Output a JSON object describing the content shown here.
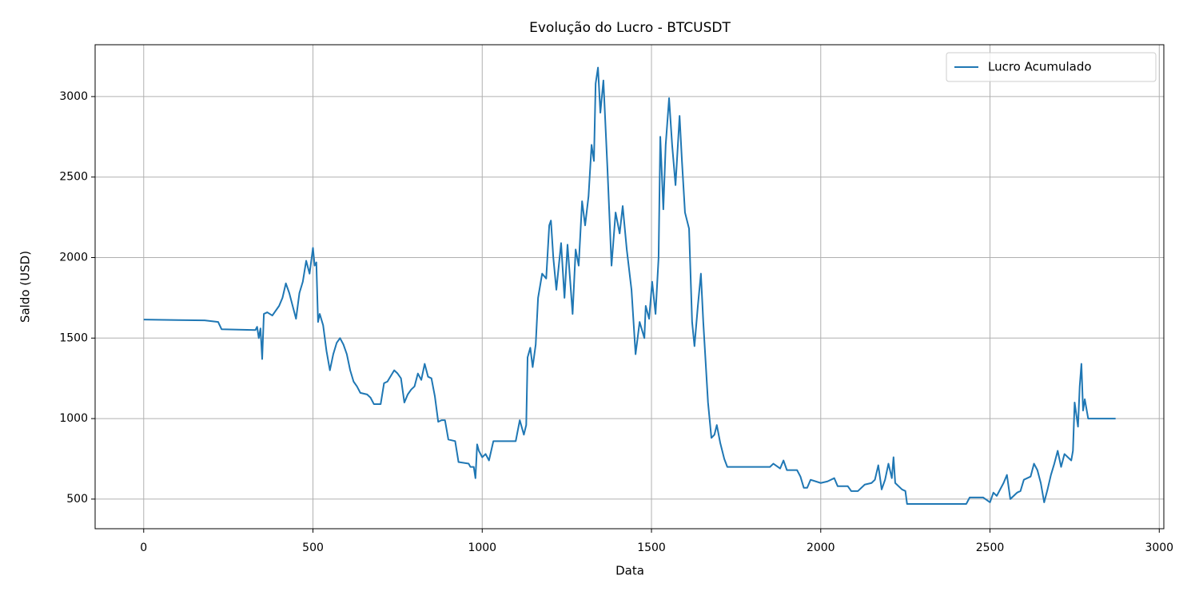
{
  "chart_data": {
    "type": "line",
    "title": "Evolução do Lucro - BTCUSDT",
    "x_label": "Data",
    "y_label": "Saldo (USD)",
    "series": [
      {
        "name": "Lucro Acumulado",
        "color": "#1f77b4",
        "x": [
          0,
          100,
          180,
          220,
          230,
          330,
          335,
          340,
          345,
          350,
          355,
          365,
          380,
          400,
          410,
          420,
          430,
          440,
          450,
          460,
          470,
          480,
          490,
          500,
          505,
          510,
          515,
          520,
          530,
          540,
          550,
          560,
          570,
          580,
          590,
          600,
          610,
          620,
          630,
          640,
          660,
          670,
          680,
          700,
          710,
          720,
          740,
          750,
          760,
          770,
          780,
          790,
          800,
          810,
          820,
          830,
          840,
          850,
          860,
          870,
          880,
          890,
          900,
          920,
          930,
          960,
          965,
          975,
          980,
          985,
          990,
          1000,
          1010,
          1020,
          1033,
          1099,
          1111,
          1123,
          1130,
          1134,
          1142,
          1149,
          1158,
          1165,
          1177,
          1189,
          1198,
          1203,
          1210,
          1219,
          1233,
          1243,
          1252,
          1267,
          1276,
          1285,
          1295,
          1304,
          1314,
          1323,
          1330,
          1335,
          1342,
          1349,
          1358,
          1370,
          1382,
          1394,
          1406,
          1415,
          1427,
          1441,
          1453,
          1465,
          1479,
          1483,
          1493,
          1502,
          1512,
          1521,
          1526,
          1535,
          1542,
          1552,
          1561,
          1571,
          1583,
          1590,
          1599,
          1611,
          1620,
          1627,
          1637,
          1646,
          1653,
          1660,
          1667,
          1677,
          1686,
          1693,
          1703,
          1715,
          1724,
          1850,
          1860,
          1880,
          1890,
          1900,
          1930,
          1940,
          1950,
          1960,
          1970,
          2000,
          2020,
          2040,
          2050,
          2080,
          2090,
          2110,
          2130,
          2150,
          2160,
          2170,
          2180,
          2190,
          2200,
          2210,
          2215,
          2220,
          2240,
          2250,
          2255,
          2420,
          2430,
          2440,
          2480,
          2500,
          2510,
          2520,
          2540,
          2550,
          2560,
          2580,
          2590,
          2600,
          2620,
          2630,
          2640,
          2650,
          2660,
          2670,
          2680,
          2690,
          2700,
          2710,
          2720,
          2730,
          2740,
          2745,
          2750,
          2760,
          2765,
          2770,
          2775,
          2780,
          2790,
          2800,
          2871
        ],
        "values": [
          1615,
          1612,
          1610,
          1600,
          1555,
          1550,
          1570,
          1500,
          1560,
          1370,
          1650,
          1660,
          1640,
          1700,
          1750,
          1840,
          1780,
          1700,
          1620,
          1780,
          1850,
          1980,
          1900,
          2060,
          1950,
          1970,
          1600,
          1650,
          1580,
          1420,
          1300,
          1400,
          1470,
          1500,
          1460,
          1400,
          1300,
          1230,
          1200,
          1160,
          1150,
          1130,
          1090,
          1090,
          1220,
          1230,
          1300,
          1280,
          1250,
          1100,
          1150,
          1180,
          1200,
          1280,
          1240,
          1340,
          1260,
          1250,
          1140,
          980,
          990,
          990,
          870,
          860,
          730,
          720,
          700,
          700,
          630,
          840,
          800,
          760,
          780,
          740,
          860,
          860,
          990,
          900,
          960,
          1380,
          1440,
          1320,
          1460,
          1750,
          1900,
          1870,
          2200,
          2230,
          2000,
          1800,
          2090,
          1750,
          2080,
          1650,
          2050,
          1950,
          2350,
          2200,
          2380,
          2700,
          2600,
          3080,
          3180,
          2900,
          3100,
          2550,
          1950,
          2280,
          2150,
          2320,
          2050,
          1800,
          1400,
          1600,
          1500,
          1700,
          1620,
          1850,
          1650,
          2000,
          2750,
          2300,
          2700,
          2990,
          2700,
          2450,
          2880,
          2600,
          2280,
          2180,
          1600,
          1450,
          1700,
          1900,
          1600,
          1350,
          1100,
          880,
          900,
          960,
          850,
          750,
          700,
          700,
          720,
          690,
          740,
          680,
          680,
          640,
          570,
          570,
          620,
          600,
          610,
          630,
          580,
          580,
          550,
          550,
          590,
          600,
          620,
          710,
          560,
          620,
          720,
          630,
          760,
          600,
          560,
          550,
          470,
          470,
          470,
          510,
          510,
          480,
          540,
          520,
          600,
          650,
          500,
          540,
          550,
          620,
          640,
          720,
          680,
          600,
          480,
          560,
          650,
          720,
          800,
          700,
          780,
          760,
          740,
          800,
          1100,
          950,
          1200,
          1340,
          1050,
          1120,
          1000,
          1000,
          1000
        ]
      }
    ],
    "xlim": [
      -143.5,
      3013.5
    ],
    "ylim": [
      316,
      3322
    ],
    "xticks": [
      0,
      500,
      1000,
      1500,
      2000,
      2500,
      3000
    ],
    "yticks": [
      500,
      1000,
      1500,
      2000,
      2500,
      3000
    ],
    "grid": true,
    "legend": "upper right"
  }
}
